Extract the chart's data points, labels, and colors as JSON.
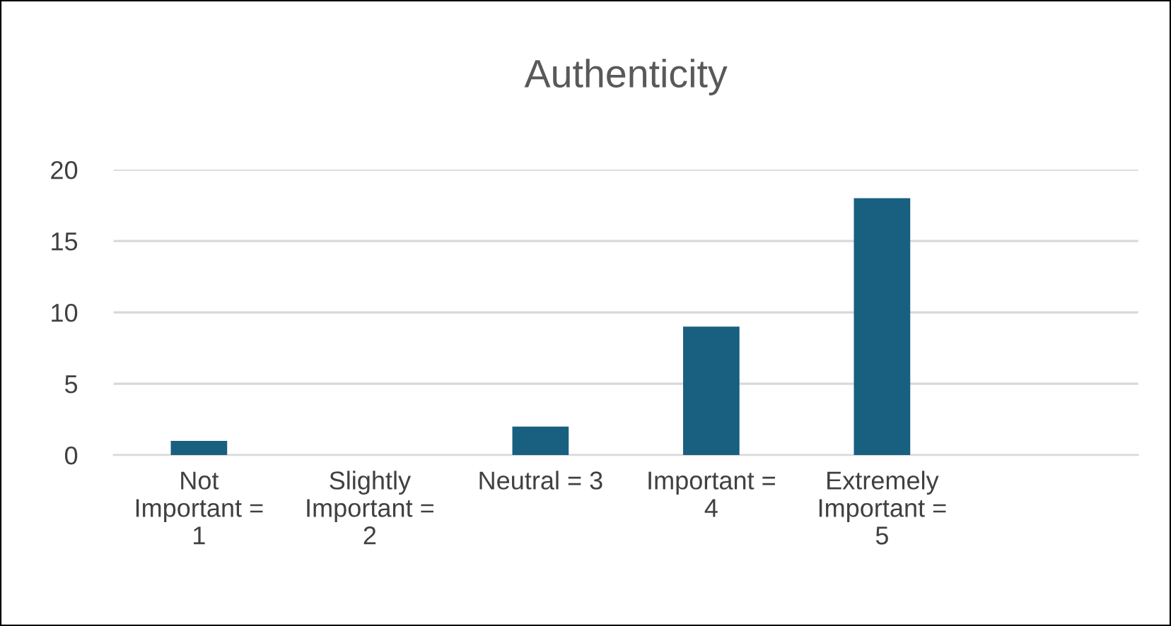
{
  "chart_data": {
    "type": "bar",
    "title": "Authenticity",
    "categories": [
      "Not Important = 1",
      "Slightly Important = 2",
      "Neutral = 3",
      "Important = 4",
      "Extremely Important = 5",
      null
    ],
    "values": [
      1,
      0,
      2,
      9,
      18,
      null
    ],
    "color": "#185f80",
    "ylim": [
      0,
      20
    ],
    "yticks": [
      0,
      5,
      10,
      15,
      20
    ],
    "grid": "y",
    "legend": false
  }
}
